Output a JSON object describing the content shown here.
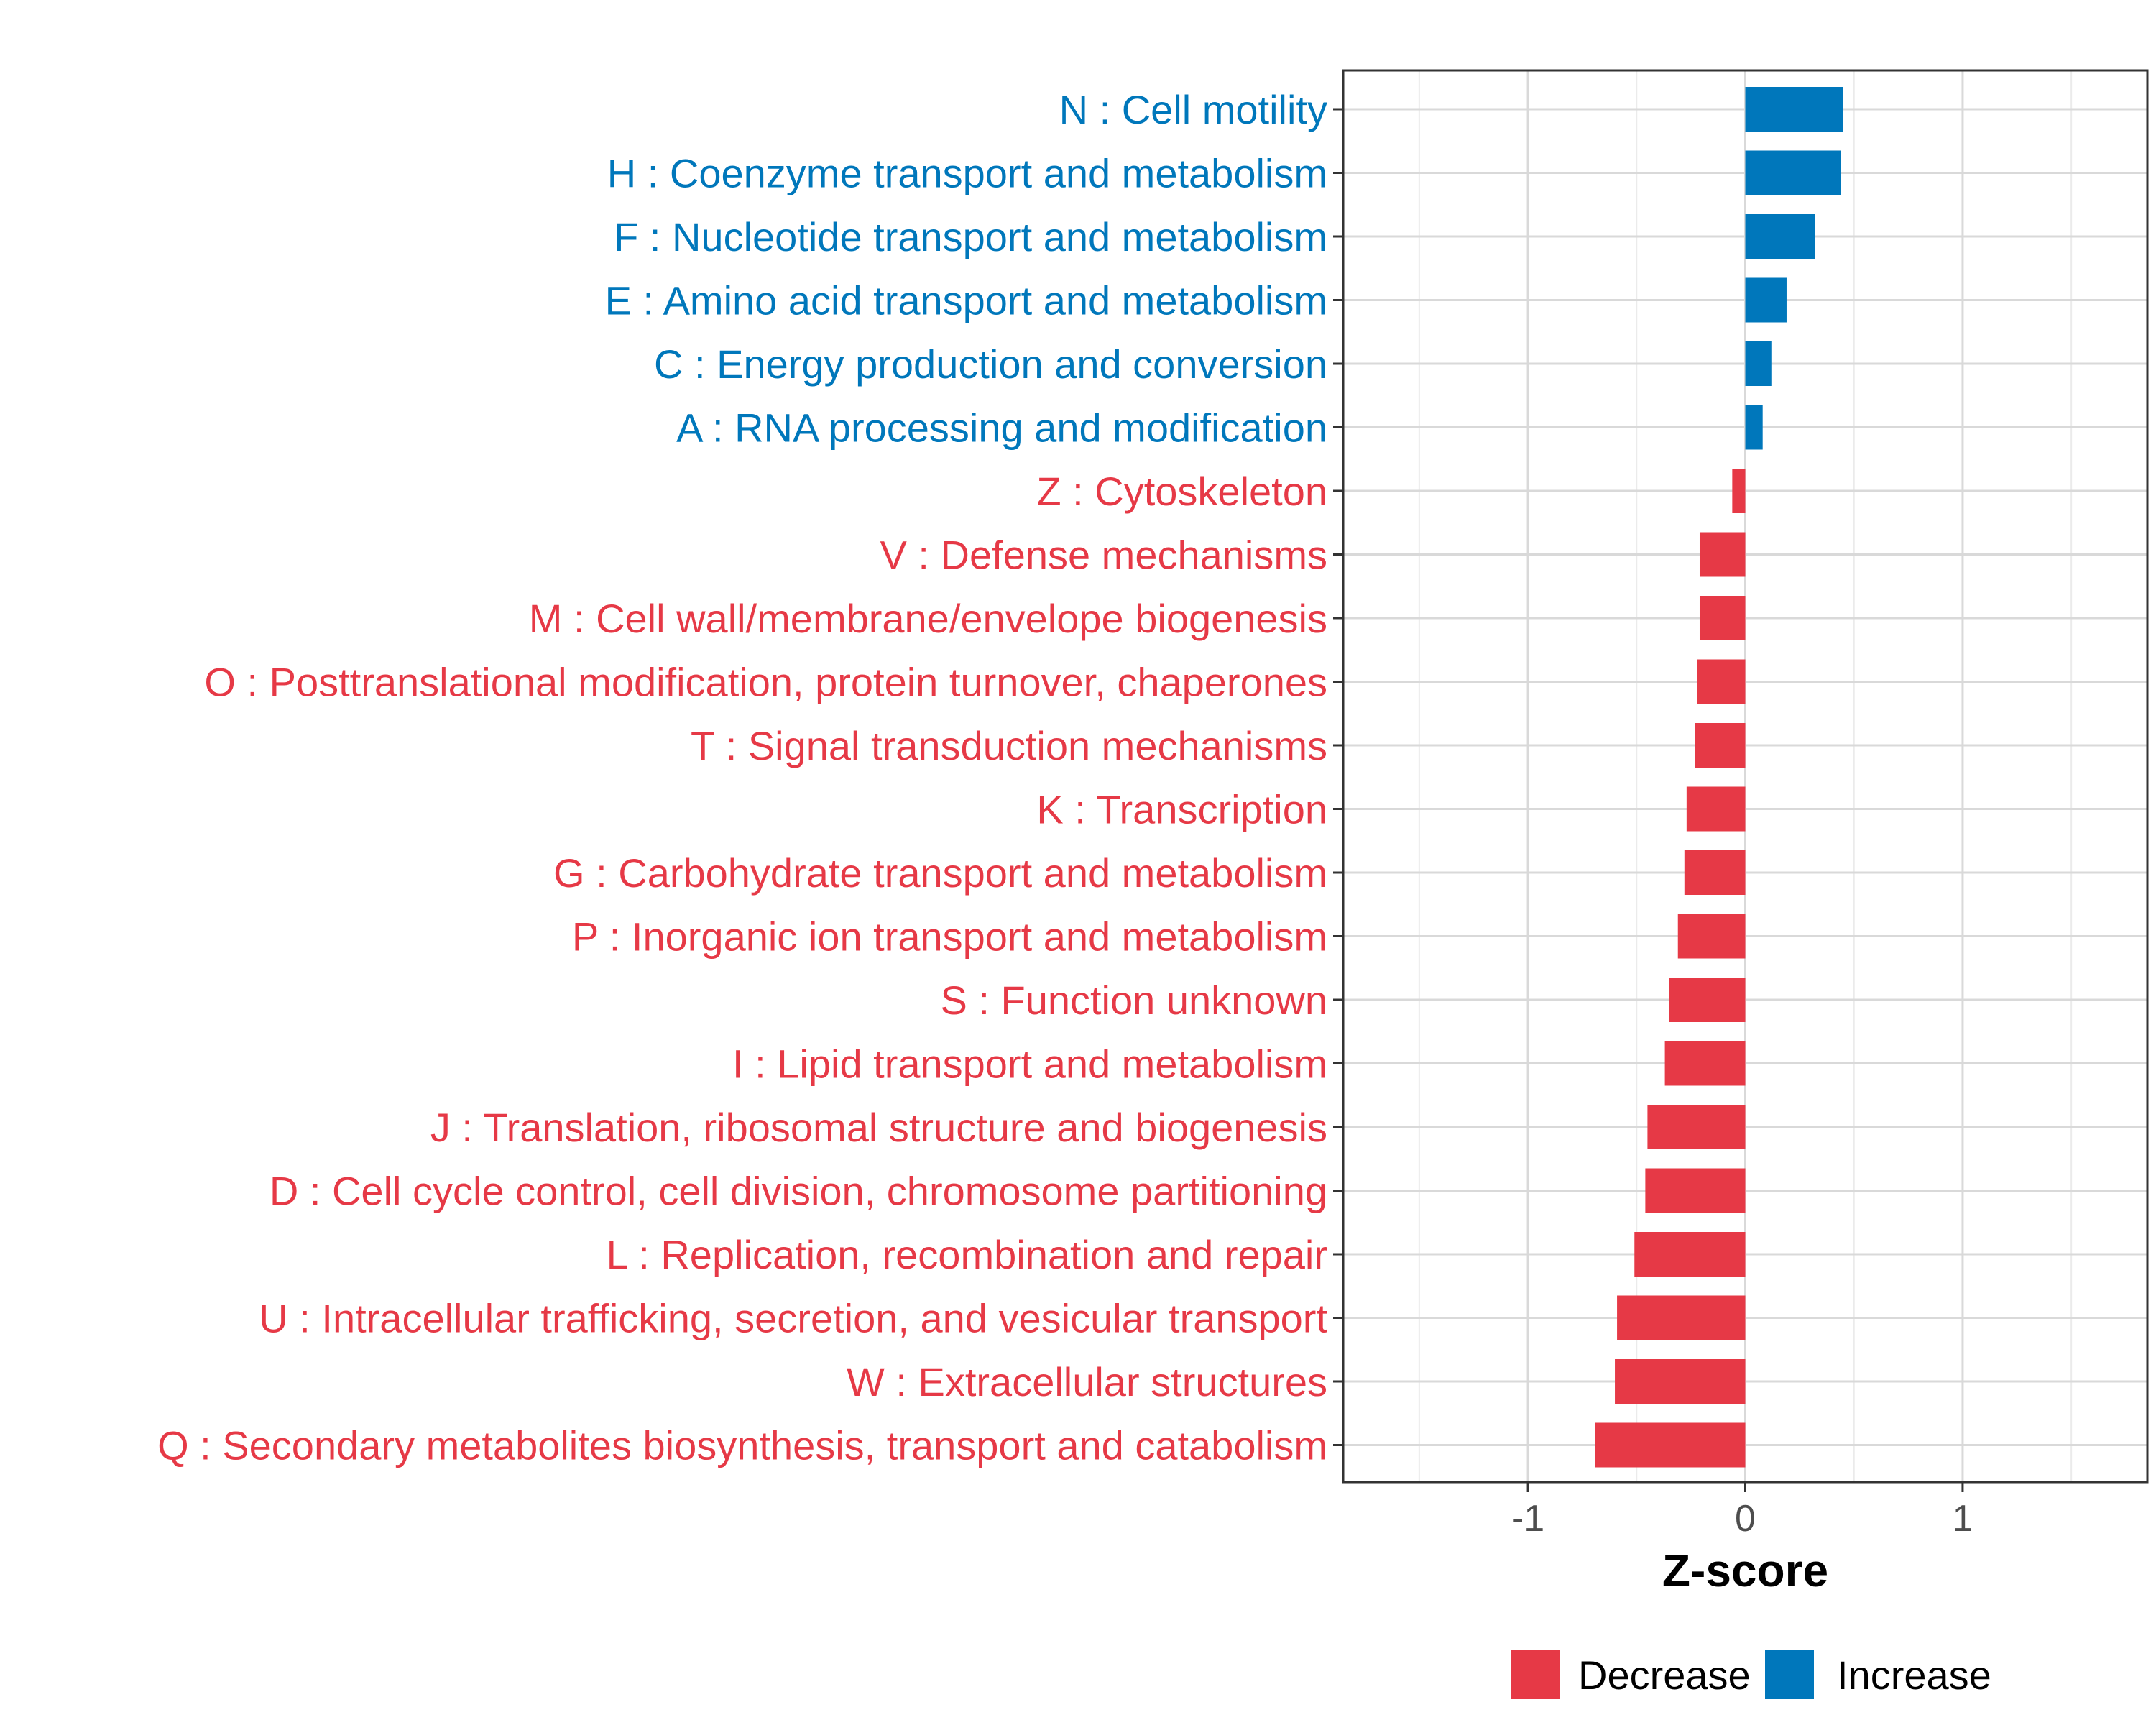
{
  "chart_data": {
    "type": "bar",
    "orientation": "horizontal",
    "xlabel": "Z-score",
    "ylabel": "",
    "xlim": [
      -1.85,
      1.85
    ],
    "xticks": [
      -1,
      0,
      1
    ],
    "xtick_labels": [
      "-1",
      "0",
      "1"
    ],
    "grid": true,
    "legend_position": "bottom",
    "colors": {
      "Decrease": "#e63946",
      "Increase": "#0077bb"
    },
    "legend": [
      {
        "label": "Decrease",
        "color": "#e63946"
      },
      {
        "label": "Increase",
        "color": "#0077bb"
      }
    ],
    "bars": [
      {
        "label": "N : Cell motility",
        "value": 0.45,
        "direction": "Increase"
      },
      {
        "label": "H : Coenzyme transport and metabolism",
        "value": 0.44,
        "direction": "Increase"
      },
      {
        "label": "F : Nucleotide transport and metabolism",
        "value": 0.32,
        "direction": "Increase"
      },
      {
        "label": "E : Amino acid transport and metabolism",
        "value": 0.19,
        "direction": "Increase"
      },
      {
        "label": "C : Energy production and conversion",
        "value": 0.12,
        "direction": "Increase"
      },
      {
        "label": "A : RNA processing and modification",
        "value": 0.08,
        "direction": "Increase"
      },
      {
        "label": "Z : Cytoskeleton",
        "value": -0.06,
        "direction": "Decrease"
      },
      {
        "label": "V : Defense mechanisms",
        "value": -0.21,
        "direction": "Decrease"
      },
      {
        "label": "M : Cell wall/membrane/envelope biogenesis",
        "value": -0.21,
        "direction": "Decrease"
      },
      {
        "label": "O : Posttranslational modification, protein turnover, chaperones",
        "value": -0.22,
        "direction": "Decrease"
      },
      {
        "label": "T : Signal transduction mechanisms",
        "value": -0.23,
        "direction": "Decrease"
      },
      {
        "label": "K : Transcription",
        "value": -0.27,
        "direction": "Decrease"
      },
      {
        "label": "G : Carbohydrate transport and metabolism",
        "value": -0.28,
        "direction": "Decrease"
      },
      {
        "label": "P : Inorganic ion transport and metabolism",
        "value": -0.31,
        "direction": "Decrease"
      },
      {
        "label": "S : Function unknown",
        "value": -0.35,
        "direction": "Decrease"
      },
      {
        "label": "I : Lipid transport and metabolism",
        "value": -0.37,
        "direction": "Decrease"
      },
      {
        "label": "J : Translation, ribosomal structure and biogenesis",
        "value": -0.45,
        "direction": "Decrease"
      },
      {
        "label": "D : Cell cycle control, cell division, chromosome partitioning",
        "value": -0.46,
        "direction": "Decrease"
      },
      {
        "label": "L : Replication, recombination and repair",
        "value": -0.51,
        "direction": "Decrease"
      },
      {
        "label": "U : Intracellular trafficking, secretion, and vesicular transport",
        "value": -0.59,
        "direction": "Decrease"
      },
      {
        "label": "W : Extracellular structures",
        "value": -0.6,
        "direction": "Decrease"
      },
      {
        "label": "Q : Secondary metabolites biosynthesis, transport and catabolism",
        "value": -0.69,
        "direction": "Decrease"
      }
    ]
  }
}
